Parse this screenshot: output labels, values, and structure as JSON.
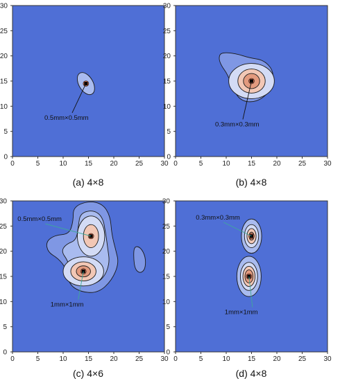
{
  "colors": {
    "background": "#4f6fd6",
    "level1": "#7f97e4",
    "level2": "#a9bbef",
    "level3": "#d3dbf5",
    "level4": "#f2c7b5",
    "level5": "#e39a7e",
    "level6": "#c86a4e",
    "contour_line": "#1a1a1a",
    "center_mark": "#000000"
  },
  "chart_data": [
    {
      "type": "heatmap",
      "caption": "(a) 4×8",
      "xlim": [
        0,
        30
      ],
      "ylim": [
        0,
        30
      ],
      "xticks": [
        0,
        5,
        10,
        15,
        20,
        25,
        30
      ],
      "yticks": [
        0,
        5,
        10,
        15,
        20,
        25,
        30
      ],
      "grid": false,
      "sources": [
        {
          "label": "0.5mm×0.5mm",
          "x": 14.5,
          "y": 14.5,
          "label_x": 6.3,
          "label_y": 7.3,
          "shapes": [
            [
              1.4,
              2.4,
              1.5
            ]
          ]
        }
      ]
    },
    {
      "type": "heatmap",
      "caption": "(b) 4×8",
      "xlim": [
        0,
        30
      ],
      "ylim": [
        0,
        30
      ],
      "xticks": [
        0,
        5,
        10,
        15,
        20,
        25,
        30
      ],
      "yticks": [
        0,
        5,
        10,
        15,
        20,
        25,
        30
      ],
      "grid": false,
      "sources": [
        {
          "label": "0.3mm×0.3mm",
          "x": 15,
          "y": 15,
          "label_x": 7.8,
          "label_y": 6.0,
          "shapes": [
            [
              4.5,
              3.5,
              0
            ],
            [
              2.7,
              2.4,
              0
            ],
            [
              1.6,
              1.5,
              0
            ]
          ]
        }
      ],
      "extra_regions": [
        {
          "level": 1,
          "points": [
            [
              9.0,
              20.7
            ],
            [
              11.8,
              20.5
            ],
            [
              14.6,
              19.6
            ],
            [
              17.3,
              19.2
            ],
            [
              19.2,
              17.3
            ],
            [
              19.3,
              14.8
            ],
            [
              18.2,
              12.4
            ],
            [
              15.8,
              10.8
            ],
            [
              13.0,
              11.0
            ],
            [
              11.4,
              13.2
            ],
            [
              10.3,
              16.3
            ],
            [
              9.0,
              18.1
            ],
            [
              8.5,
              19.6
            ]
          ]
        }
      ]
    },
    {
      "type": "heatmap",
      "caption": "(c) 4×6",
      "xlim": [
        0,
        30
      ],
      "ylim": [
        0,
        30
      ],
      "xticks": [
        0,
        5,
        10,
        15,
        20,
        25,
        30
      ],
      "yticks": [
        0,
        5,
        10,
        15,
        20,
        25,
        30
      ],
      "grid": false,
      "sources": [
        {
          "label": "0.5mm×0.5mm",
          "x": 15.5,
          "y": 23,
          "label_x": 1.0,
          "label_y": 26.0,
          "shapes": [
            [
              2.7,
              4.0,
              0
            ],
            [
              1.5,
              2.3,
              0
            ]
          ]
        },
        {
          "label": "1mm×1mm",
          "x": 14,
          "y": 16,
          "label_x": 7.5,
          "label_y": 9.0,
          "shapes": [
            [
              4.0,
              2.9,
              0
            ],
            [
              2.5,
              1.9,
              0
            ],
            [
              1.4,
              1.1,
              0
            ]
          ]
        }
      ],
      "extra_regions": [
        {
          "level": 1,
          "points": [
            [
              12.0,
              28.8
            ],
            [
              15.0,
              30.0
            ],
            [
              17.8,
              29.4
            ],
            [
              19.3,
              27.0
            ],
            [
              19.6,
              23.3
            ],
            [
              20.4,
              20.2
            ],
            [
              21.0,
              17.6
            ],
            [
              19.6,
              14.2
            ],
            [
              17.0,
              11.8
            ],
            [
              13.8,
              11.8
            ],
            [
              11.2,
              13.3
            ],
            [
              10.6,
              16.6
            ],
            [
              9.0,
              18.6
            ],
            [
              7.0,
              19.8
            ],
            [
              6.6,
              21.9
            ],
            [
              8.4,
              23.2
            ],
            [
              11.2,
              23.4
            ],
            [
              12.0,
              26.0
            ]
          ]
        },
        {
          "level": 2,
          "points": [
            [
              13.4,
              27.6
            ],
            [
              16.0,
              28.2
            ],
            [
              17.8,
              26.8
            ],
            [
              18.4,
              23.6
            ],
            [
              18.8,
              20.6
            ],
            [
              19.2,
              17.6
            ],
            [
              18.0,
              14.6
            ],
            [
              15.6,
              13.2
            ],
            [
              13.0,
              13.4
            ],
            [
              11.6,
              15.4
            ],
            [
              11.0,
              18.0
            ],
            [
              9.6,
              20.0
            ],
            [
              10.6,
              21.4
            ],
            [
              12.6,
              22.2
            ],
            [
              13.0,
              25.0
            ]
          ]
        },
        {
          "level": 1,
          "points": [
            [
              24.0,
              21.0
            ],
            [
              25.3,
              20.8
            ],
            [
              26.3,
              18.8
            ],
            [
              26.2,
              16.4
            ],
            [
              25.2,
              15.6
            ],
            [
              24.2,
              16.4
            ],
            [
              23.9,
              18.6
            ]
          ]
        }
      ]
    },
    {
      "type": "heatmap",
      "caption": "(d) 4×8",
      "xlim": [
        0,
        30
      ],
      "ylim": [
        0,
        30
      ],
      "xticks": [
        0,
        5,
        10,
        15,
        20,
        25,
        30
      ],
      "yticks": [
        0,
        5,
        10,
        15,
        20,
        25,
        30
      ],
      "grid": false,
      "sources": [
        {
          "label": "0.3mm×0.3mm",
          "x": 15,
          "y": 23,
          "label_x": 4.0,
          "label_y": 26.3,
          "shapes": [
            [
              2.0,
              3.4,
              0
            ],
            [
              1.4,
              2.3,
              0
            ],
            [
              0.9,
              1.5,
              0
            ],
            [
              0.5,
              0.8,
              0
            ]
          ]
        },
        {
          "label": "1mm×1mm",
          "x": 14.5,
          "y": 15,
          "label_x": 9.7,
          "label_y": 7.5,
          "shapes": [
            [
              2.4,
              4.0,
              0
            ],
            [
              1.7,
              2.8,
              0
            ],
            [
              1.2,
              2.0,
              0
            ],
            [
              0.8,
              1.3,
              0
            ]
          ]
        }
      ]
    }
  ]
}
